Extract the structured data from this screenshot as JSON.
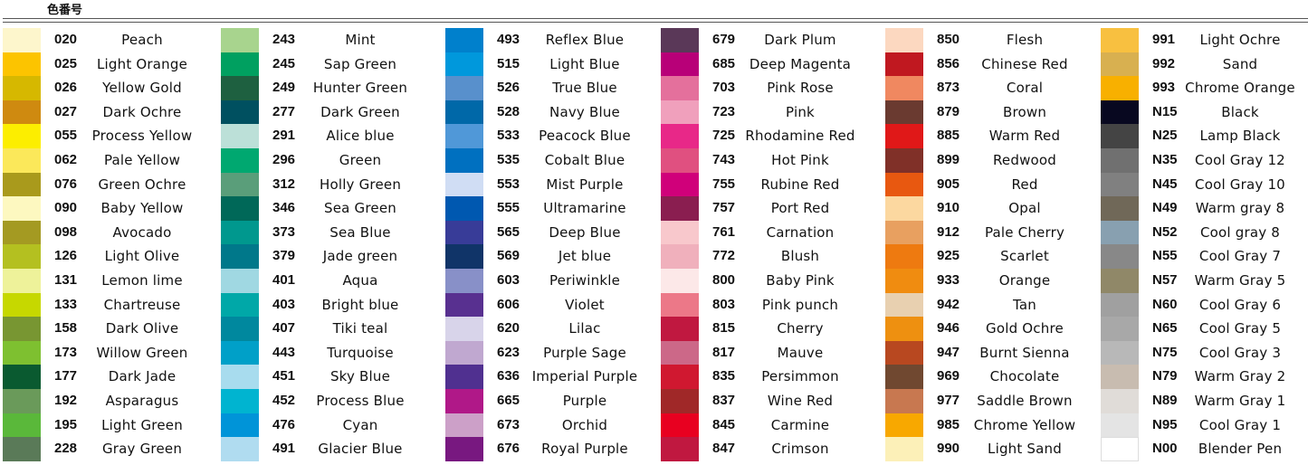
{
  "header": "色番号",
  "columns": [
    [
      [
        "020",
        "Peach",
        "#fdf6cc"
      ],
      [
        "025",
        "Light Orange",
        "#fcc400"
      ],
      [
        "026",
        "Yellow Gold",
        "#d6b800"
      ],
      [
        "027",
        "Dark Ochre",
        "#cf8a10"
      ],
      [
        "055",
        "Process Yellow",
        "#fcee00"
      ],
      [
        "062",
        "Pale Yellow",
        "#fbe85a"
      ],
      [
        "076",
        "Green Ochre",
        "#a99a1c"
      ],
      [
        "090",
        "Baby Yellow",
        "#fdf8c0"
      ],
      [
        "098",
        "Avocado",
        "#a49a22"
      ],
      [
        "126",
        "Light Olive",
        "#b4c020"
      ],
      [
        "131",
        "Lemon lime",
        "#eef29a"
      ],
      [
        "133",
        "Chartreuse",
        "#c6d800"
      ],
      [
        "158",
        "Dark Olive",
        "#789632"
      ],
      [
        "173",
        "Willow Green",
        "#7ec030"
      ],
      [
        "177",
        "Dark Jade",
        "#0a5a30"
      ],
      [
        "192",
        "Asparagus",
        "#6a9a5a"
      ],
      [
        "195",
        "Light Green",
        "#5ab83a"
      ],
      [
        "228",
        "Gray Green",
        "#5a7a58"
      ]
    ],
    [
      [
        "243",
        "Mint",
        "#a8d48e"
      ],
      [
        "245",
        "Sap Green",
        "#00a060"
      ],
      [
        "249",
        "Hunter Green",
        "#1e6040"
      ],
      [
        "277",
        "Dark Green",
        "#005060"
      ],
      [
        "291",
        "Alice blue",
        "#bce0d8"
      ],
      [
        "296",
        "Green",
        "#00a870"
      ],
      [
        "312",
        "Holly Green",
        "#5a9e7a"
      ],
      [
        "346",
        "Sea Green",
        "#006858"
      ],
      [
        "373",
        "Sea Blue",
        "#00988e"
      ],
      [
        "379",
        "Jade green",
        "#00788a"
      ],
      [
        "401",
        "Aqua",
        "#a0d8e2"
      ],
      [
        "403",
        "Bright blue",
        "#00a8a8"
      ],
      [
        "407",
        "Tiki teal",
        "#00889e"
      ],
      [
        "443",
        "Turquoise",
        "#00a0c8"
      ],
      [
        "451",
        "Sky Blue",
        "#a8dcee"
      ],
      [
        "452",
        "Process Blue",
        "#00b4d0"
      ],
      [
        "476",
        "Cyan",
        "#0094d8"
      ],
      [
        "491",
        "Glacier Blue",
        "#b0dcf0"
      ]
    ],
    [
      [
        "493",
        "Reflex Blue",
        "#0080cc"
      ],
      [
        "515",
        "Light Blue",
        "#0098dc"
      ],
      [
        "526",
        "True Blue",
        "#5890cc"
      ],
      [
        "528",
        "Navy Blue",
        "#0068a8"
      ],
      [
        "533",
        "Peacock Blue",
        "#5098d8"
      ],
      [
        "535",
        "Cobalt Blue",
        "#0070c0"
      ],
      [
        "553",
        "Mist Purple",
        "#d0ddf4"
      ],
      [
        "555",
        "Ultramarine",
        "#0058b0"
      ],
      [
        "565",
        "Deep Blue",
        "#383c98"
      ],
      [
        "569",
        "Jet blue",
        "#103468"
      ],
      [
        "603",
        "Periwinkle",
        "#8890c8"
      ],
      [
        "606",
        "Violet",
        "#583090"
      ],
      [
        "620",
        "Lilac",
        "#d8d4ea"
      ],
      [
        "623",
        "Purple Sage",
        "#c0a8d0"
      ],
      [
        "636",
        "Imperial Purple",
        "#503090"
      ],
      [
        "665",
        "Purple",
        "#b01888"
      ],
      [
        "673",
        "Orchid",
        "#cca0c8"
      ],
      [
        "676",
        "Royal Purple",
        "#781880"
      ]
    ],
    [
      [
        "679",
        "Dark Plum",
        "#5a3858"
      ],
      [
        "685",
        "Deep Magenta",
        "#b80078"
      ],
      [
        "703",
        "Pink Rose",
        "#e4709c"
      ],
      [
        "723",
        "Pink",
        "#f0a0bc"
      ],
      [
        "725",
        "Rhodamine Red",
        "#e82888"
      ],
      [
        "743",
        "Hot Pink",
        "#e05080"
      ],
      [
        "755",
        "Rubine Red",
        "#d0007a"
      ],
      [
        "757",
        "Port Red",
        "#8a1e50"
      ],
      [
        "761",
        "Carnation",
        "#f8c8cc"
      ],
      [
        "772",
        "Blush",
        "#f0b0bc"
      ],
      [
        "800",
        "Baby Pink",
        "#fce8e8"
      ],
      [
        "803",
        "Pink punch",
        "#ec7888"
      ],
      [
        "815",
        "Cherry",
        "#c01840"
      ],
      [
        "817",
        "Mauve",
        "#cc6888"
      ],
      [
        "835",
        "Persimmon",
        "#d01830"
      ],
      [
        "837",
        "Wine Red",
        "#a02828"
      ],
      [
        "845",
        "Carmine",
        "#e80020"
      ],
      [
        "847",
        "Crimson",
        "#c01840"
      ]
    ],
    [
      [
        "850",
        "Flesh",
        "#fcd8c0"
      ],
      [
        "856",
        "Chinese Red",
        "#c01820"
      ],
      [
        "873",
        "Coral",
        "#f08860"
      ],
      [
        "879",
        "Brown",
        "#6a3a30"
      ],
      [
        "885",
        "Warm Red",
        "#e01818"
      ],
      [
        "899",
        "Redwood",
        "#803028"
      ],
      [
        "905",
        "Red",
        "#e85810"
      ],
      [
        "910",
        "Opal",
        "#fcd8a0"
      ],
      [
        "912",
        "Pale Cherry",
        "#e8a060"
      ],
      [
        "925",
        "Scarlet",
        "#ee7a10"
      ],
      [
        "933",
        "Orange",
        "#f08c10"
      ],
      [
        "942",
        "Tan",
        "#e8d0b0"
      ],
      [
        "946",
        "Gold Ochre",
        "#ee9010"
      ],
      [
        "947",
        "Burnt Sienna",
        "#b84820"
      ],
      [
        "969",
        "Chocolate",
        "#704830"
      ],
      [
        "977",
        "Saddle Brown",
        "#c87850"
      ],
      [
        "985",
        "Chrome Yellow",
        "#f8a800"
      ],
      [
        "990",
        "Light Sand",
        "#fcf0b8"
      ]
    ],
    [
      [
        "991",
        "Light Ochre",
        "#f8c040"
      ],
      [
        "992",
        "Sand",
        "#d8b050"
      ],
      [
        "993",
        "Chrome Orange",
        "#f8b000"
      ],
      [
        "N15",
        "Black",
        "#080820"
      ],
      [
        "N25",
        "Lamp Black",
        "#444444"
      ],
      [
        "N35",
        "Cool Gray 12",
        "#707070"
      ],
      [
        "N45",
        "Cool Gray 10",
        "#808080"
      ],
      [
        "N49",
        "Warm gray 8",
        "#706858"
      ],
      [
        "N52",
        "Cool gray 8",
        "#88a0b0"
      ],
      [
        "N55",
        "Cool Gray 7",
        "#888888"
      ],
      [
        "N57",
        "Warm Gray 5",
        "#908868"
      ],
      [
        "N60",
        "Cool Gray 6",
        "#a0a0a0"
      ],
      [
        "N65",
        "Cool Gray 5",
        "#a8a8a8"
      ],
      [
        "N75",
        "Cool Gray 3",
        "#b8b8b8"
      ],
      [
        "N79",
        "Warm Gray 2",
        "#c8bcb0"
      ],
      [
        "N89",
        "Warm Gray 1",
        "#e0dcd8"
      ],
      [
        "N95",
        "Cool Gray 1",
        "#e4e4e4"
      ],
      [
        "N00",
        "Blender Pen",
        "#ffffff"
      ]
    ]
  ]
}
